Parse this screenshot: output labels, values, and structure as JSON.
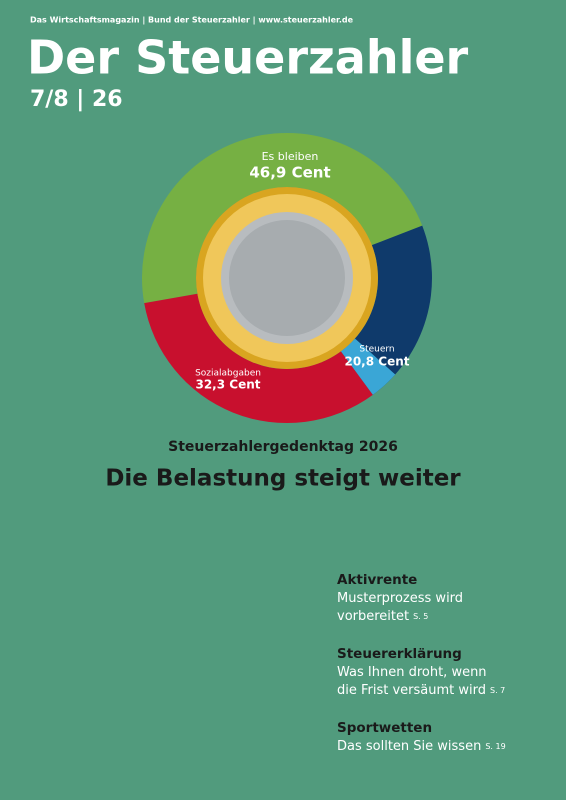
{
  "header": {
    "top_line": "Das Wirtschaftsmagazin | Bund der Steuerzahler | www.steuerzahler.de",
    "title": "Der Steuerzahler",
    "issue": "7/8 | 26"
  },
  "chart_data": {
    "type": "pie",
    "categories": [
      "Es bleiben",
      "Steuern",
      "Sozialabgaben"
    ],
    "values": [
      46.9,
      20.8,
      32.3
    ],
    "value_labels": [
      "46,9 Cent",
      "20,8 Cent",
      "32,3 Cent"
    ],
    "colors": [
      "#76b043",
      "#0f3a6b",
      "#c8102e"
    ]
  },
  "kicker": "Steuerzahlergedenktag 2026",
  "headline": "Die Belastung steigt weiter",
  "teasers": [
    {
      "category": "Aktivrente",
      "lines": [
        "Musterprozess wird",
        "vorbereitet"
      ],
      "page": "S. 5"
    },
    {
      "category": "Steuererklärung",
      "lines": [
        "Was Ihnen droht, wenn",
        "die Frist versäumt wird"
      ],
      "page": "S. 7"
    },
    {
      "category": "Sportwetten",
      "lines": [
        "Das sollten Sie wissen"
      ],
      "page": "S. 19"
    }
  ]
}
